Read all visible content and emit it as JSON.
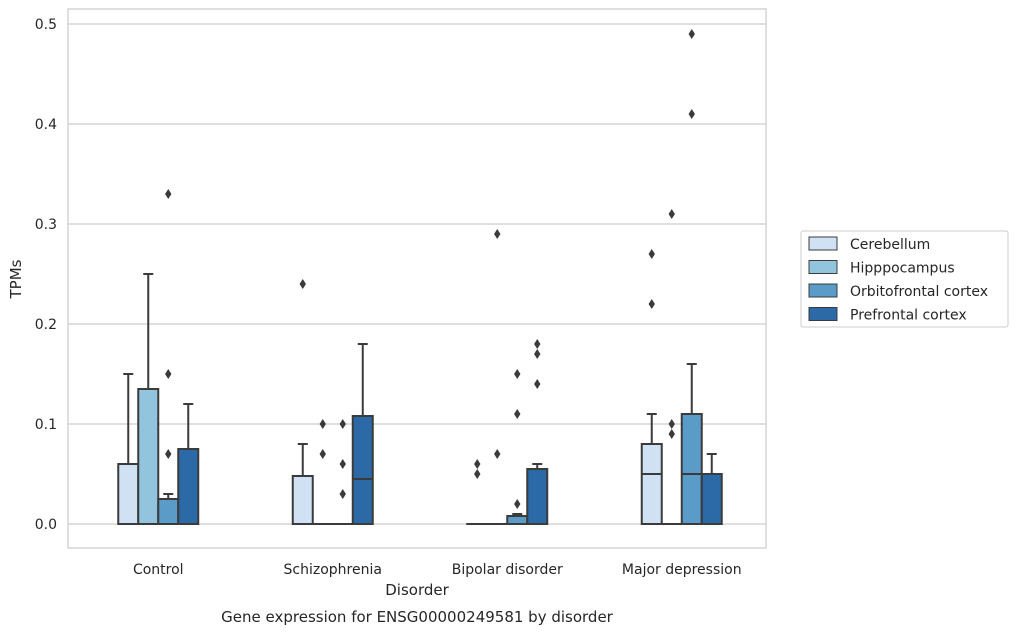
{
  "chart_data": {
    "type": "box",
    "title": "Gene expression for ENSG00000249581 by disorder",
    "xlabel": "Disorder",
    "ylabel": "TPMs",
    "ylim": [
      -0.024,
      0.515
    ],
    "yticks": [
      "0.0",
      "0.1",
      "0.2",
      "0.3",
      "0.4",
      "0.5"
    ],
    "grid": true,
    "legend_position": "right",
    "categories": [
      "Control",
      "Schizophrenia",
      "Bipolar disorder",
      "Major depression"
    ],
    "series": [
      {
        "name": "Cerebellum",
        "color": "#cfe1f2",
        "boxes": [
          {
            "q1": 0,
            "median": 0,
            "q3": 0.06,
            "whisker_low": 0,
            "whisker_high": 0.15,
            "outliers": []
          },
          {
            "q1": 0,
            "median": 0,
            "q3": 0.048,
            "whisker_low": 0,
            "whisker_high": 0.08,
            "outliers": [
              0.24
            ]
          },
          {
            "q1": 0,
            "median": 0,
            "q3": 0,
            "whisker_low": 0,
            "whisker_high": 0,
            "outliers": [
              0.05,
              0.06
            ]
          },
          {
            "q1": 0,
            "median": 0.05,
            "q3": 0.08,
            "whisker_low": 0,
            "whisker_high": 0.11,
            "outliers": [
              0.22,
              0.27
            ]
          }
        ]
      },
      {
        "name": "Hipppocampus",
        "color": "#93c4de",
        "boxes": [
          {
            "q1": 0,
            "median": 0,
            "q3": 0.135,
            "whisker_low": 0,
            "whisker_high": 0.25,
            "outliers": []
          },
          {
            "q1": 0,
            "median": 0,
            "q3": 0,
            "whisker_low": 0,
            "whisker_high": 0,
            "outliers": [
              0.07,
              0.1
            ]
          },
          {
            "q1": 0,
            "median": 0,
            "q3": 0,
            "whisker_low": 0,
            "whisker_high": 0,
            "outliers": [
              0.07,
              0.29
            ]
          },
          {
            "q1": 0,
            "median": 0,
            "q3": 0,
            "whisker_low": 0,
            "whisker_high": 0,
            "outliers": [
              0.09,
              0.1,
              0.31
            ]
          }
        ]
      },
      {
        "name": "Orbitofrontal cortex",
        "color": "#5a9bc8",
        "boxes": [
          {
            "q1": 0,
            "median": 0,
            "q3": 0.025,
            "whisker_low": 0,
            "whisker_high": 0.03,
            "outliers": [
              0.07,
              0.15,
              0.33
            ]
          },
          {
            "q1": 0,
            "median": 0,
            "q3": 0,
            "whisker_low": 0,
            "whisker_high": 0,
            "outliers": [
              0.03,
              0.06,
              0.1
            ]
          },
          {
            "q1": 0,
            "median": 0,
            "q3": 0.008,
            "whisker_low": 0,
            "whisker_high": 0.01,
            "outliers": [
              0.02,
              0.11,
              0.15
            ]
          },
          {
            "q1": 0,
            "median": 0.05,
            "q3": 0.11,
            "whisker_low": 0,
            "whisker_high": 0.16,
            "outliers": [
              0.41,
              0.49
            ]
          }
        ]
      },
      {
        "name": "Prefrontal cortex",
        "color": "#2b6aa6",
        "boxes": [
          {
            "q1": 0,
            "median": 0,
            "q3": 0.075,
            "whisker_low": 0,
            "whisker_high": 0.12,
            "outliers": []
          },
          {
            "q1": 0,
            "median": 0.045,
            "q3": 0.108,
            "whisker_low": 0,
            "whisker_high": 0.18,
            "outliers": []
          },
          {
            "q1": 0,
            "median": 0,
            "q3": 0.055,
            "whisker_low": 0,
            "whisker_high": 0.06,
            "outliers": [
              0.14,
              0.17,
              0.18
            ]
          },
          {
            "q1": 0,
            "median": 0,
            "q3": 0.05,
            "whisker_low": 0,
            "whisker_high": 0.07,
            "outliers": []
          }
        ]
      }
    ]
  }
}
